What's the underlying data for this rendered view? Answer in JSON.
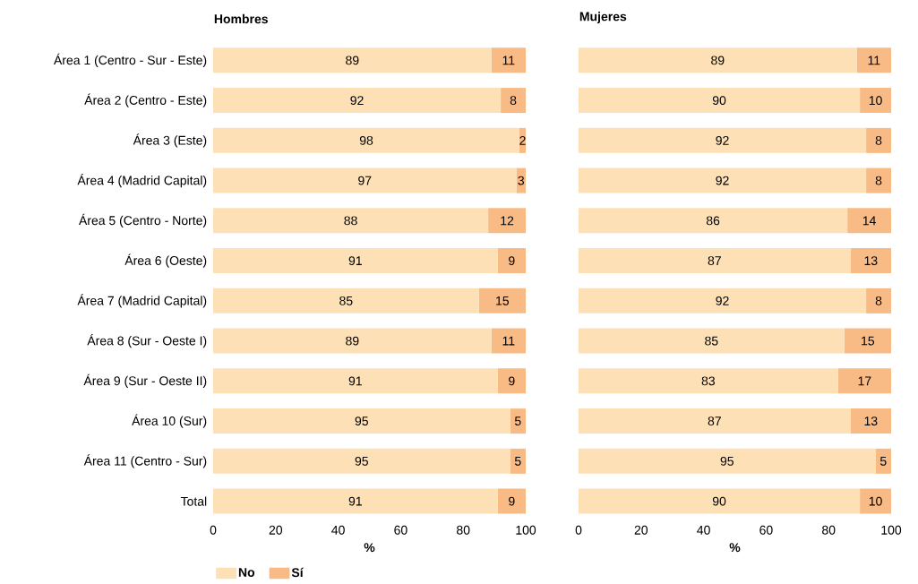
{
  "chart_data": [
    {
      "type": "bar",
      "orientation": "horizontal",
      "stacked": true,
      "title": "Hombres",
      "xlabel": "%",
      "categories": [
        "Área 1 (Centro - Sur - Este)",
        "Área 2 (Centro - Este)",
        "Área 3 (Este)",
        "Área 4 (Madrid Capital)",
        "Área 5 (Centro - Norte)",
        "Área 6 (Oeste)",
        "Área 7 (Madrid Capital)",
        "Área 8 (Sur - Oeste I)",
        "Área 9 (Sur - Oeste II)",
        "Área 10 (Sur)",
        "Área 11 (Centro - Sur)",
        "Total"
      ],
      "series": [
        {
          "name": "No",
          "color": "#fde0b6",
          "values": [
            89,
            92,
            98,
            97,
            88,
            91,
            85,
            89,
            91,
            95,
            95,
            91
          ]
        },
        {
          "name": "Sí",
          "color": "#f9bb85",
          "values": [
            11,
            8,
            2,
            3,
            12,
            9,
            15,
            11,
            9,
            5,
            5,
            9
          ]
        }
      ],
      "xlim": [
        0,
        100
      ],
      "xticks": [
        0,
        20,
        40,
        60,
        80,
        100
      ],
      "data_labels": true,
      "legend": "bottom"
    },
    {
      "type": "bar",
      "orientation": "horizontal",
      "stacked": true,
      "title": "Mujeres",
      "xlabel": "%",
      "categories": [
        null,
        null,
        null,
        null,
        null,
        null,
        null,
        null,
        null,
        null,
        null,
        null
      ],
      "series": [
        {
          "color": "#fde0b6",
          "values": [
            89,
            90,
            92,
            92,
            86,
            87,
            92,
            85,
            83,
            87,
            95,
            90
          ]
        },
        {
          "color": "#f9bb85",
          "values": [
            11,
            10,
            8,
            8,
            14,
            13,
            8,
            15,
            17,
            13,
            5,
            10
          ]
        }
      ],
      "xlim": [
        0,
        100
      ],
      "xticks": [
        0,
        20,
        40,
        60,
        80,
        100
      ],
      "data_labels": true,
      "tick_labels": "x"
    }
  ]
}
